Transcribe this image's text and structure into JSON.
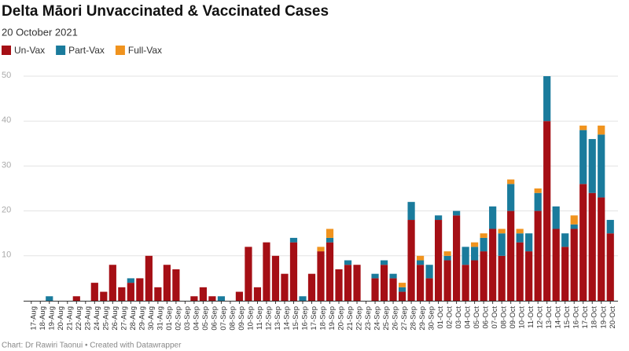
{
  "chart_data": {
    "type": "stacked_bar",
    "title": "Delta Māori Unvaccinated & Vaccinated Cases",
    "subtitle": "20 October 2021",
    "footer": "Chart: Dr Rawiri Taonui • Created with Datawrapper",
    "categories": [
      "17-Aug",
      "18-Aug",
      "19-Aug",
      "20-Aug",
      "21-Aug",
      "22-Aug",
      "23-Aug",
      "24-Aug",
      "25-Aug",
      "26-Aug",
      "27-Aug",
      "28-Aug",
      "29-Aug",
      "30-Aug",
      "31-Aug",
      "01-Sep",
      "02-Sep",
      "03-Sep",
      "04-Sep",
      "05-Sep",
      "06-Sep",
      "07-Sep",
      "08-Sep",
      "09-Sep",
      "10-Sep",
      "11-Sep",
      "12-Sep",
      "13-Sep",
      "14-Sep",
      "15-Sep",
      "16-Sep",
      "17-Sep",
      "18-Sep",
      "19-Sep",
      "20-Sep",
      "21-Sep",
      "22-Sep",
      "23-Sep",
      "24-Sep",
      "25-Sep",
      "26-Sep",
      "27-Sep",
      "28-Sep",
      "29-Sep",
      "30-Sep",
      "01-Oct",
      "02-Oct",
      "03-Oct",
      "04-Oct",
      "05-Oct",
      "06-Oct",
      "07-Oct",
      "08-Oct",
      "09-Oct",
      "10-Oct",
      "11-Oct",
      "12-Oct",
      "13-Oct",
      "14-Oct",
      "15-Oct",
      "16-Oct",
      "17-Oct",
      "18-Oct",
      "19-Oct",
      "20-Oct"
    ],
    "series": [
      {
        "name": "Un-Vax",
        "color": "#a50f15",
        "values": [
          0,
          0,
          0,
          0,
          0,
          1,
          0,
          4,
          2,
          8,
          3,
          4,
          5,
          10,
          3,
          8,
          7,
          0,
          1,
          3,
          1,
          0,
          0,
          2,
          12,
          3,
          13,
          10,
          6,
          13,
          0,
          6,
          11,
          13,
          7,
          8,
          8,
          0,
          5,
          8,
          5,
          2,
          18,
          8,
          5,
          18,
          9,
          19,
          8,
          9,
          11,
          16,
          10,
          20,
          13,
          11,
          20,
          40,
          16,
          12,
          16,
          26,
          24,
          23,
          15
        ]
      },
      {
        "name": "Part-Vax",
        "color": "#1a7b9c",
        "values": [
          0,
          0,
          1,
          0,
          0,
          0,
          0,
          0,
          0,
          0,
          0,
          1,
          0,
          0,
          0,
          0,
          0,
          0,
          0,
          0,
          0,
          1,
          0,
          0,
          0,
          0,
          0,
          0,
          0,
          1,
          1,
          0,
          0,
          1,
          0,
          1,
          0,
          0,
          1,
          1,
          1,
          1,
          4,
          1,
          3,
          1,
          1,
          1,
          4,
          3,
          3,
          5,
          5,
          6,
          2,
          4,
          4,
          10,
          5,
          3,
          1,
          12,
          12,
          14,
          3
        ]
      },
      {
        "name": "Full-Vax",
        "color": "#f0931e",
        "values": [
          0,
          0,
          0,
          0,
          0,
          0,
          0,
          0,
          0,
          0,
          0,
          0,
          0,
          0,
          0,
          0,
          0,
          0,
          0,
          0,
          0,
          0,
          0,
          0,
          0,
          0,
          0,
          0,
          0,
          0,
          0,
          0,
          1,
          2,
          0,
          0,
          0,
          0,
          0,
          0,
          0,
          1,
          0,
          1,
          0,
          0,
          1,
          0,
          0,
          1,
          1,
          0,
          1,
          1,
          1,
          0,
          1,
          0,
          0,
          0,
          2,
          1,
          0,
          2,
          0
        ]
      }
    ],
    "ylim": [
      0,
      50
    ],
    "yticks": [
      10,
      20,
      30,
      40,
      50
    ],
    "grid": true
  }
}
